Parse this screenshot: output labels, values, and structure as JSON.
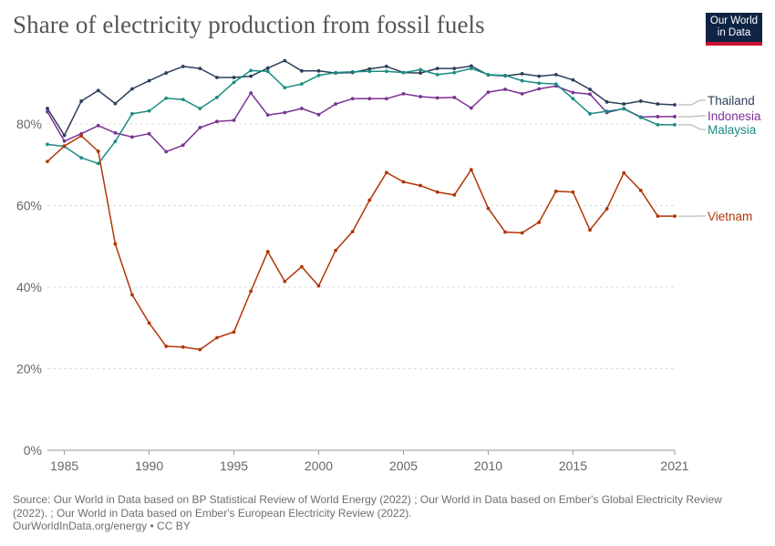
{
  "header": {
    "title": "Share of electricity production from fossil fuels",
    "logo_line1": "Our World",
    "logo_line2": "in Data"
  },
  "footer": {
    "source": "Source: Our World in Data based on BP Statistical Review of World Energy (2022) ; Our World in Data based on Ember's Global Electricity Review (2022). ; Our World in Data based on Ember's European Electricity Review (2022).",
    "credit": "OurWorldInData.org/energy • CC BY"
  },
  "colors": {
    "Thailand": "#2c3e5a",
    "Indonesia": "#7b3294",
    "Malaysia": "#1a8c82",
    "Vietnam": "#b13507",
    "grid": "#dddddd",
    "axis": "#666666"
  },
  "chart_data": {
    "type": "line",
    "title": "Share of electricity production from fossil fuels",
    "x_ticks": [
      1985,
      1990,
      1995,
      2000,
      2005,
      2010,
      2015,
      2021
    ],
    "y_ticks": [
      "0%",
      "20%",
      "40%",
      "60%",
      "80%"
    ],
    "y_tick_values": [
      0,
      20,
      40,
      60,
      80
    ],
    "xlim": [
      1984,
      2021
    ],
    "ylim": [
      0,
      95
    ],
    "grid": true,
    "legend": "right-end labels",
    "x": [
      1984,
      1985,
      1986,
      1987,
      1988,
      1989,
      1990,
      1991,
      1992,
      1993,
      1994,
      1995,
      1996,
      1997,
      1998,
      1999,
      2000,
      2001,
      2002,
      2003,
      2004,
      2005,
      2006,
      2007,
      2008,
      2009,
      2010,
      2011,
      2012,
      2013,
      2014,
      2015,
      2016,
      2017,
      2018,
      2019,
      2020,
      2021
    ],
    "series": [
      {
        "name": "Thailand",
        "values": [
          83.8,
          77.2,
          85.6,
          88.2,
          85.0,
          88.6,
          90.6,
          92.5,
          94.1,
          93.6,
          91.4,
          91.4,
          91.7,
          93.7,
          95.5,
          93.0,
          93.0,
          92.5,
          92.6,
          93.5,
          94.1,
          92.6,
          92.5,
          93.6,
          93.6,
          94.2,
          92.0,
          91.8,
          92.3,
          91.7,
          92.1,
          90.8,
          88.5,
          85.4,
          84.9,
          85.6,
          84.9,
          84.7
        ]
      },
      {
        "name": "Indonesia",
        "values": [
          83.0,
          75.8,
          77.6,
          79.6,
          77.8,
          76.8,
          77.6,
          73.2,
          74.8,
          79.1,
          80.6,
          80.9,
          87.6,
          82.2,
          82.8,
          83.8,
          82.3,
          84.9,
          86.2,
          86.2,
          86.2,
          87.4,
          86.7,
          86.4,
          86.5,
          83.9,
          87.8,
          88.5,
          87.4,
          88.6,
          89.3,
          87.7,
          87.3,
          82.8,
          83.8,
          81.7,
          81.8,
          81.8
        ]
      },
      {
        "name": "Malaysia",
        "values": [
          75.0,
          74.5,
          71.7,
          70.3,
          75.7,
          82.5,
          83.2,
          86.3,
          86.0,
          83.8,
          86.5,
          90.2,
          93.1,
          92.9,
          88.9,
          89.8,
          91.9,
          92.6,
          92.8,
          92.9,
          92.9,
          92.6,
          93.3,
          92.1,
          92.6,
          93.6,
          92.1,
          91.9,
          90.6,
          90.0,
          89.8,
          86.2,
          82.5,
          83.1,
          83.7,
          81.6,
          79.8,
          79.8
        ]
      },
      {
        "name": "Vietnam",
        "values": [
          70.8,
          74.6,
          77.1,
          73.3,
          50.6,
          38.1,
          31.2,
          25.5,
          25.3,
          24.7,
          27.6,
          29.0,
          39.0,
          48.7,
          41.4,
          45.0,
          40.3,
          49.0,
          53.6,
          61.3,
          68.1,
          65.8,
          64.9,
          63.3,
          62.6,
          68.8,
          59.3,
          53.5,
          53.3,
          55.9,
          63.5,
          63.3,
          54.0,
          59.2,
          68.0,
          63.7,
          57.4,
          57.4
        ]
      }
    ]
  }
}
